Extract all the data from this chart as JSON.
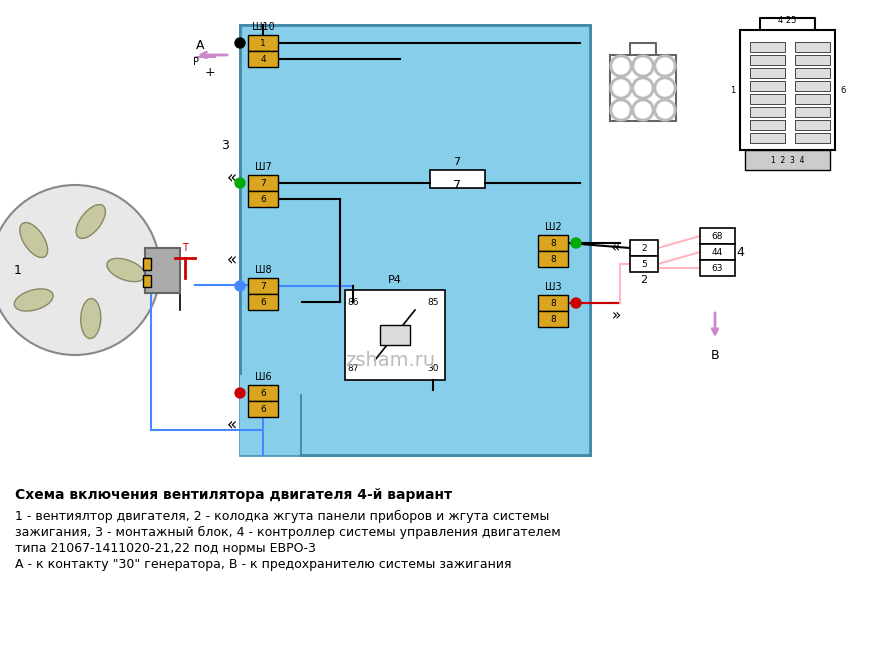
{
  "title": "Схема включения вентилятора двигателя 4-й вариант",
  "caption_line1": "1 - вентиялтор двигателя, 2 - колодка жгута панели приборов и жгута системы",
  "caption_line2": "зажигания, 3 - монтажный блок, 4 - контроллер системы управления двигателем",
  "caption_line3": "типа 21067-1411020-21,22 под нормы ЕВРО-3",
  "caption_line4": "А - к контакту \"30\" генератора, В - к предохранителю системы зажигания",
  "bg_color": "#ffffff",
  "main_block_color": "#87CEEB",
  "connector_color": "#DAA520",
  "text_color": "#000000"
}
